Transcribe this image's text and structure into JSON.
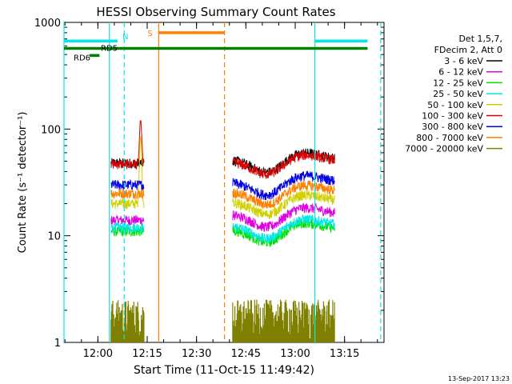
{
  "chart_data": {
    "type": "line",
    "title": "HESSI Observing Summary Count Rates",
    "xlabel": "Start Time (11-Oct-15 11:49:42)",
    "ylabel": "Count Rate (s⁻¹ detector⁻¹)",
    "yscale": "log",
    "ylim": [
      1,
      1000
    ],
    "xlim": [
      "11:49:42",
      "13:27:00"
    ],
    "y_ticks": [
      "1",
      "10",
      "100",
      "1000"
    ],
    "x_ticks": [
      "12:00",
      "12:15",
      "12:30",
      "12:45",
      "13:00",
      "13:15"
    ],
    "legend_title": [
      "Det 1,5,7,",
      "FDecim 2, Att 0"
    ],
    "legend_position": "right",
    "footer_timestamp": "13-Sep-2017 13:23",
    "bands": [
      {
        "name": "3 - 6 keV",
        "color": "#000000"
      },
      {
        "name": "6 - 12 keV",
        "color": "#e000e0"
      },
      {
        "name": "12 - 25 keV",
        "color": "#00e000"
      },
      {
        "name": "25 - 50 keV",
        "color": "#00e8e8"
      },
      {
        "name": "50 - 100 keV",
        "color": "#d0d000"
      },
      {
        "name": "100 - 300 keV",
        "color": "#e00000"
      },
      {
        "name": "300 - 800 keV",
        "color": "#0000e0"
      },
      {
        "name": "800 - 7000 keV",
        "color": "#ff8000"
      },
      {
        "name": "7000 - 20000 keV",
        "color": "#808000"
      }
    ],
    "flags": [
      {
        "label": "N",
        "color": "#00e8e8",
        "intervals": [
          [
            "11:49:42",
            "12:06:00"
          ],
          [
            "13:06:00",
            "13:22:00"
          ]
        ],
        "level": 670
      },
      {
        "label": "S",
        "color": "#ff8000",
        "intervals": [
          [
            "12:18:30",
            "12:38:30"
          ]
        ],
        "level": 800
      },
      {
        "label": "RD5",
        "color": "#008000",
        "intervals": [
          [
            "11:49:42",
            "13:22:00"
          ]
        ],
        "level": 570
      },
      {
        "label": "RD6",
        "color": "#008000",
        "intervals": [
          [
            "11:57:30",
            "12:00:30"
          ]
        ],
        "level": 490
      }
    ],
    "vlines": [
      {
        "time": "11:49:42",
        "color": "#00e8e8",
        "style": "solid"
      },
      {
        "time": "12:03:30",
        "color": "#00e8e8",
        "style": "solid"
      },
      {
        "time": "12:08:00",
        "color": "#00e8e8",
        "style": "dashed"
      },
      {
        "time": "12:18:30",
        "color": "#ff8000",
        "style": "solid"
      },
      {
        "time": "12:38:30",
        "color": "#ff8000",
        "style": "dashed"
      },
      {
        "time": "13:06:00",
        "color": "#00e8e8",
        "style": "solid"
      },
      {
        "time": "13:26:00",
        "color": "#00e8e8",
        "style": "dashed"
      }
    ],
    "segments": [
      {
        "start": "12:04:00",
        "end": "12:14:00",
        "levels": [
          48,
          14,
          11,
          12,
          20,
          47,
          30,
          25,
          1.8
        ],
        "peak": {
          "time": "12:13:00",
          "red": 120,
          "yellow": 85
        }
      },
      {
        "start": "12:41:00",
        "end": "13:12:00",
        "levels": [
          52,
          16,
          11.5,
          12.5,
          21,
          50,
          32,
          26,
          1.8
        ],
        "dip": {
          "time": "12:52:00",
          "factor": 0.72
        },
        "bump": {
          "time": "13:01:00",
          "factor": 1.18
        }
      }
    ]
  }
}
